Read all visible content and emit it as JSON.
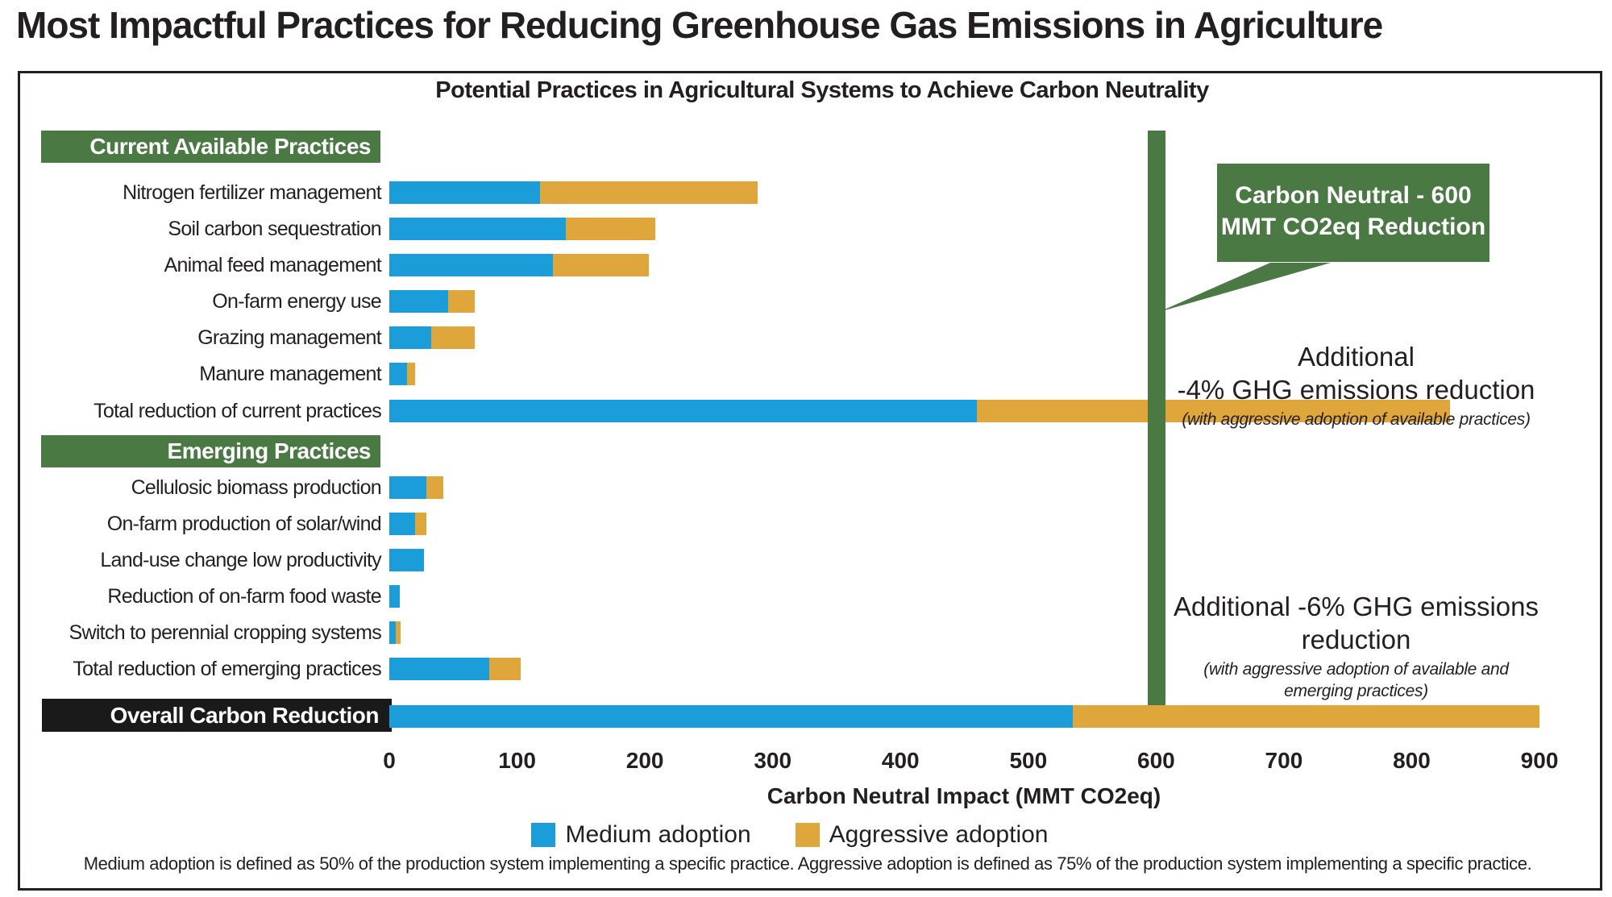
{
  "page": {
    "title": "Most Impactful Practices for Reducing Greenhouse Gas Emissions in Agriculture"
  },
  "chart": {
    "title": "Potential Practices in Agricultural Systems to Achieve Carbon Neutrality",
    "xlabel": "Carbon Neutral Impact (MMT CO2eq)",
    "footnote": "Medium adoption is defined as 50% of the production system implementing a specific practice. Aggressive adoption is defined as 75% of the production system implementing a specific practice.",
    "callout": {
      "line1": "Carbon Neutral - 600",
      "line2": "MMT CO2eq Reduction"
    },
    "annotation_available": {
      "line1": "Additional",
      "line2": "-4% GHG emissions reduction",
      "note": "(with aggressive adoption of available practices)"
    },
    "annotation_emerging": {
      "line1": "Additional -6% GHG emissions",
      "line2": "reduction",
      "note_line1": "(with aggressive adoption of available and",
      "note_line2": "emerging practices)"
    },
    "legend": [
      {
        "label": "Medium adoption",
        "color_key": "medium"
      },
      {
        "label": "Aggressive adoption",
        "color_key": "aggressive"
      }
    ]
  },
  "colors": {
    "medium": "#1A9DD9",
    "aggressive": "#DFA63C",
    "green": "#4B7943",
    "black_box": "#1A1A1A",
    "text": "#231F20"
  },
  "chart_data": {
    "type": "bar",
    "orientation": "horizontal",
    "unit": "MMT CO2eq",
    "title": "Potential Practices in Agricultural Systems to Achieve Carbon Neutrality",
    "xlabel": "Carbon Neutral Impact (MMT CO2eq)",
    "x_axis": {
      "min": 0,
      "max": 900,
      "ticks": [
        0,
        100,
        200,
        300,
        400,
        500,
        600,
        700,
        800,
        900
      ]
    },
    "grid": false,
    "legend_position": "bottom",
    "series_names": [
      "Medium adoption",
      "Aggressive adoption"
    ],
    "reference_line": {
      "value": 600,
      "label": "Carbon Neutral - 600 MMT CO2eq Reduction"
    },
    "rows": [
      {
        "kind": "section",
        "label": "Current Available Practices"
      },
      {
        "kind": "bar",
        "label": "Nitrogen fertilizer management",
        "medium": 118,
        "aggressive": 170
      },
      {
        "kind": "bar",
        "label": "Soil carbon sequestration",
        "medium": 138,
        "aggressive": 70
      },
      {
        "kind": "bar",
        "label": "Animal feed management",
        "medium": 128,
        "aggressive": 75
      },
      {
        "kind": "bar",
        "label": "On-farm energy use",
        "medium": 46,
        "aggressive": 21
      },
      {
        "kind": "bar",
        "label": "Grazing management",
        "medium": 33,
        "aggressive": 34
      },
      {
        "kind": "bar",
        "label": "Manure management",
        "medium": 14,
        "aggressive": 6
      },
      {
        "kind": "bar",
        "label": "Total reduction of current practices",
        "medium": 460,
        "aggressive": 370
      },
      {
        "kind": "section",
        "label": "Emerging Practices"
      },
      {
        "kind": "bar",
        "label": "Cellulosic biomass production",
        "medium": 29,
        "aggressive": 13
      },
      {
        "kind": "bar",
        "label": "On-farm production of solar/wind",
        "medium": 20,
        "aggressive": 9
      },
      {
        "kind": "bar",
        "label": "Land-use change low productivity",
        "medium": 27,
        "aggressive": 0
      },
      {
        "kind": "bar",
        "label": "Reduction of on-farm food waste",
        "medium": 8,
        "aggressive": 0
      },
      {
        "kind": "bar",
        "label": "Switch to perennial cropping systems",
        "medium": 5,
        "aggressive": 4
      },
      {
        "kind": "bar",
        "label": "Total reduction of emerging practices",
        "medium": 78,
        "aggressive": 25
      },
      {
        "kind": "overall",
        "label": "Overall Carbon Reduction",
        "medium": 535,
        "aggressive": 365
      }
    ]
  }
}
